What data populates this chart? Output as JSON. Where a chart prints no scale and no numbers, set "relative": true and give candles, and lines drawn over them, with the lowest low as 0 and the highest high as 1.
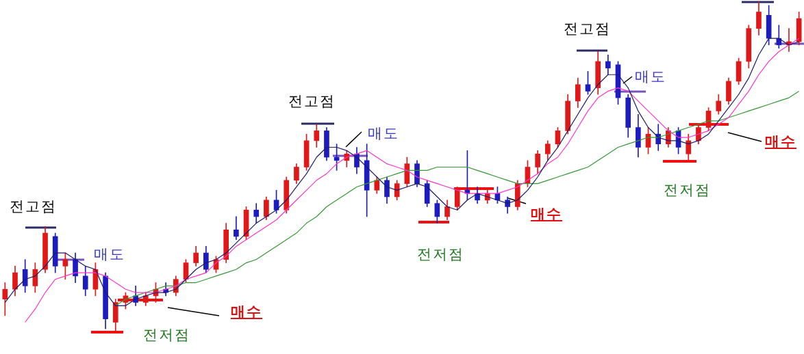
{
  "chart_data": {
    "type": "candlestick",
    "relative": true,
    "categories": [
      null,
      null,
      null,
      null,
      null,
      null,
      null,
      null,
      null,
      null,
      null,
      null,
      null,
      null,
      null,
      null,
      null,
      null,
      null,
      null,
      null,
      null,
      null,
      null,
      null,
      null,
      null,
      null,
      null,
      null,
      null,
      null,
      null,
      null,
      null,
      null,
      null,
      null,
      null,
      null,
      null,
      null,
      null,
      null,
      null,
      null,
      null,
      null,
      null,
      null,
      null,
      null,
      null,
      null,
      null,
      null,
      null,
      null,
      null,
      null,
      null,
      null,
      null,
      null,
      null,
      null,
      null,
      null,
      null,
      null,
      null,
      null,
      null,
      null,
      null,
      null,
      null,
      null,
      null,
      null
    ],
    "ohlc": [
      [
        0.1,
        0.15,
        0.05,
        0.13
      ],
      [
        0.13,
        0.2,
        0.11,
        0.18
      ],
      [
        0.19,
        0.22,
        0.12,
        0.14
      ],
      [
        0.14,
        0.21,
        0.12,
        0.19
      ],
      [
        0.19,
        0.32,
        0.18,
        0.3
      ],
      [
        0.29,
        0.3,
        0.18,
        0.2
      ],
      [
        0.2,
        0.24,
        0.16,
        0.22
      ],
      [
        0.22,
        0.24,
        0.15,
        0.17
      ],
      [
        0.17,
        0.2,
        0.11,
        0.13
      ],
      [
        0.13,
        0.21,
        0.11,
        0.19
      ],
      [
        0.17,
        0.18,
        0.01,
        0.04
      ],
      [
        0.03,
        0.1,
        0.0,
        0.09
      ],
      [
        0.09,
        0.12,
        0.07,
        0.11
      ],
      [
        0.11,
        0.14,
        0.08,
        0.09
      ],
      [
        0.09,
        0.12,
        0.08,
        0.11
      ],
      [
        0.11,
        0.15,
        0.09,
        0.13
      ],
      [
        0.13,
        0.15,
        0.11,
        0.12
      ],
      [
        0.12,
        0.17,
        0.11,
        0.16
      ],
      [
        0.16,
        0.22,
        0.15,
        0.21
      ],
      [
        0.21,
        0.26,
        0.2,
        0.24
      ],
      [
        0.24,
        0.26,
        0.18,
        0.19
      ],
      [
        0.19,
        0.23,
        0.18,
        0.22
      ],
      [
        0.22,
        0.33,
        0.21,
        0.31
      ],
      [
        0.31,
        0.35,
        0.28,
        0.29
      ],
      [
        0.29,
        0.38,
        0.28,
        0.37
      ],
      [
        0.37,
        0.39,
        0.33,
        0.35
      ],
      [
        0.35,
        0.41,
        0.34,
        0.4
      ],
      [
        0.4,
        0.43,
        0.36,
        0.37
      ],
      [
        0.37,
        0.47,
        0.36,
        0.46
      ],
      [
        0.46,
        0.51,
        0.45,
        0.5
      ],
      [
        0.5,
        0.6,
        0.49,
        0.58
      ],
      [
        0.58,
        0.63,
        0.56,
        0.61
      ],
      [
        0.61,
        0.62,
        0.52,
        0.53
      ],
      [
        0.53,
        0.57,
        0.49,
        0.52
      ],
      [
        0.52,
        0.55,
        0.5,
        0.54
      ],
      [
        0.54,
        0.56,
        0.48,
        0.5
      ],
      [
        0.52,
        0.57,
        0.35,
        0.43
      ],
      [
        0.43,
        0.47,
        0.42,
        0.46
      ],
      [
        0.46,
        0.47,
        0.39,
        0.41
      ],
      [
        0.41,
        0.46,
        0.4,
        0.45
      ],
      [
        0.45,
        0.53,
        0.44,
        0.51
      ],
      [
        0.51,
        0.52,
        0.44,
        0.45
      ],
      [
        0.45,
        0.46,
        0.38,
        0.39
      ],
      [
        0.39,
        0.4,
        0.33,
        0.35
      ],
      [
        0.35,
        0.4,
        0.34,
        0.38
      ],
      [
        0.38,
        0.44,
        0.37,
        0.43
      ],
      [
        0.43,
        0.55,
        0.4,
        0.42
      ],
      [
        0.42,
        0.44,
        0.39,
        0.4
      ],
      [
        0.4,
        0.43,
        0.39,
        0.42
      ],
      [
        0.42,
        0.44,
        0.39,
        0.4
      ],
      [
        0.4,
        0.41,
        0.36,
        0.38
      ],
      [
        0.38,
        0.46,
        0.37,
        0.45
      ],
      [
        0.45,
        0.52,
        0.44,
        0.5
      ],
      [
        0.5,
        0.55,
        0.48,
        0.54
      ],
      [
        0.54,
        0.58,
        0.52,
        0.57
      ],
      [
        0.57,
        0.62,
        0.56,
        0.61
      ],
      [
        0.61,
        0.72,
        0.6,
        0.7
      ],
      [
        0.7,
        0.77,
        0.68,
        0.75
      ],
      [
        0.75,
        0.79,
        0.72,
        0.73
      ],
      [
        0.74,
        0.85,
        0.72,
        0.82
      ],
      [
        0.82,
        0.84,
        0.78,
        0.8
      ],
      [
        0.81,
        0.82,
        0.69,
        0.71
      ],
      [
        0.71,
        0.72,
        0.59,
        0.62
      ],
      [
        0.62,
        0.66,
        0.53,
        0.56
      ],
      [
        0.56,
        0.62,
        0.54,
        0.6
      ],
      [
        0.6,
        0.63,
        0.55,
        0.57
      ],
      [
        0.57,
        0.62,
        0.56,
        0.61
      ],
      [
        0.61,
        0.62,
        0.54,
        0.56
      ],
      [
        0.54,
        0.6,
        0.52,
        0.58
      ],
      [
        0.58,
        0.63,
        0.57,
        0.62
      ],
      [
        0.62,
        0.68,
        0.61,
        0.67
      ],
      [
        0.67,
        0.72,
        0.66,
        0.7
      ],
      [
        0.7,
        0.77,
        0.69,
        0.76
      ],
      [
        0.76,
        0.83,
        0.75,
        0.82
      ],
      [
        0.82,
        0.93,
        0.8,
        0.92
      ],
      [
        0.92,
        1.0,
        0.9,
        0.97
      ],
      [
        0.96,
        0.99,
        0.87,
        0.89
      ],
      [
        0.89,
        0.93,
        0.86,
        0.87
      ],
      [
        0.87,
        0.92,
        0.85,
        0.88
      ],
      [
        0.88,
        0.97,
        0.87,
        0.95
      ]
    ],
    "colors": [
      "#e01818",
      "#e01818",
      "#1c1cc0",
      "#e01818",
      "#e01818",
      "#1c1cc0",
      "#e01818",
      "#1c1cc0",
      "#1c1cc0",
      "#e01818",
      "#1c1cc0",
      "#e01818",
      "#e01818",
      "#1c1cc0",
      "#e01818",
      "#e01818",
      "#1c1cc0",
      "#e01818",
      "#e01818",
      "#e01818",
      "#1c1cc0",
      "#e01818",
      "#e01818",
      "#1c1cc0",
      "#e01818",
      "#1c1cc0",
      "#e01818",
      "#1c1cc0",
      "#e01818",
      "#e01818",
      "#e01818",
      "#e01818",
      "#1c1cc0",
      "#1c1cc0",
      "#e01818",
      "#1c1cc0",
      "#1c1cc0",
      "#e01818",
      "#1c1cc0",
      "#e01818",
      "#e01818",
      "#1c1cc0",
      "#1c1cc0",
      "#1c1cc0",
      "#e01818",
      "#e01818",
      "#1c1cc0",
      "#1c1cc0",
      "#e01818",
      "#1c1cc0",
      "#1c1cc0",
      "#e01818",
      "#e01818",
      "#e01818",
      "#e01818",
      "#e01818",
      "#e01818",
      "#e01818",
      "#1c1cc0",
      "#e01818",
      "#1c1cc0",
      "#1c1cc0",
      "#1c1cc0",
      "#1c1cc0",
      "#e01818",
      "#1c1cc0",
      "#e01818",
      "#1c1cc0",
      "#e01818",
      "#e01818",
      "#e01818",
      "#e01818",
      "#e01818",
      "#e01818",
      "#e01818",
      "#e01818",
      "#1c1cc0",
      "#1c1cc0",
      "#e01818",
      "#e01818"
    ],
    "series": [
      {
        "type": "line",
        "color": "#1a1a6e",
        "values": [
          0.09,
          0.13,
          0.16,
          0.17,
          0.2,
          0.24,
          0.24,
          0.22,
          0.2,
          0.19,
          0.12,
          0.08,
          0.08,
          0.1,
          0.11,
          0.12,
          0.12,
          0.13,
          0.16,
          0.19,
          0.21,
          0.22,
          0.24,
          0.27,
          0.3,
          0.33,
          0.35,
          0.37,
          0.4,
          0.44,
          0.48,
          0.53,
          0.56,
          0.56,
          0.55,
          0.53,
          0.5,
          0.47,
          0.44,
          0.43,
          0.44,
          0.45,
          0.44,
          0.41,
          0.38,
          0.37,
          0.4,
          0.42,
          0.41,
          0.4,
          0.39,
          0.4,
          0.43,
          0.47,
          0.52,
          0.56,
          0.61,
          0.66,
          0.71,
          0.75,
          0.78,
          0.78,
          0.74,
          0.67,
          0.62,
          0.59,
          0.58,
          0.58,
          0.57,
          0.58,
          0.6,
          0.64,
          0.68,
          0.72,
          0.77,
          0.84,
          0.89,
          0.89,
          0.87,
          0.88
        ]
      },
      {
        "type": "line",
        "color": "#ff33cc",
        "values": [
          null,
          null,
          0.03,
          0.07,
          0.12,
          0.16,
          0.17,
          0.18,
          0.18,
          0.18,
          0.17,
          0.15,
          0.13,
          0.12,
          0.12,
          0.12,
          0.13,
          0.14,
          0.16,
          0.17,
          0.18,
          0.21,
          0.23,
          0.26,
          0.28,
          0.3,
          0.32,
          0.34,
          0.37,
          0.4,
          0.43,
          0.46,
          0.48,
          0.51,
          0.53,
          0.54,
          0.55,
          0.53,
          0.51,
          0.5,
          0.49,
          0.47,
          0.46,
          0.45,
          0.44,
          0.43,
          0.42,
          0.42,
          0.42,
          0.42,
          0.43,
          0.44,
          0.46,
          0.48,
          0.51,
          0.53,
          0.57,
          0.62,
          0.67,
          0.71,
          0.73,
          0.74,
          0.73,
          0.7,
          0.67,
          0.64,
          0.61,
          0.59,
          0.59,
          0.6,
          0.61,
          0.63,
          0.65,
          0.69,
          0.73,
          0.78,
          0.82,
          0.85,
          0.87,
          0.89
        ]
      },
      {
        "type": "line",
        "color": "#339933",
        "values": [
          null,
          null,
          null,
          null,
          null,
          null,
          null,
          null,
          null,
          null,
          null,
          0.08,
          0.1,
          0.11,
          0.12,
          0.13,
          0.14,
          0.14,
          0.15,
          0.15,
          0.16,
          0.17,
          0.18,
          0.19,
          0.21,
          0.22,
          0.24,
          0.26,
          0.28,
          0.3,
          0.33,
          0.35,
          0.38,
          0.4,
          0.42,
          0.44,
          0.45,
          0.46,
          0.47,
          0.48,
          0.49,
          0.49,
          0.49,
          0.5,
          0.5,
          0.5,
          0.5,
          0.49,
          0.48,
          0.47,
          0.46,
          0.45,
          0.45,
          0.45,
          0.46,
          0.47,
          0.48,
          0.49,
          0.5,
          0.52,
          0.54,
          0.56,
          0.57,
          0.58,
          0.59,
          0.59,
          0.6,
          0.61,
          0.62,
          0.63,
          0.64,
          0.64,
          0.65,
          0.66,
          0.67,
          0.68,
          0.69,
          0.7,
          0.71,
          0.73
        ]
      }
    ],
    "annotations": [
      "전고점",
      "매도",
      "매수",
      "전저점",
      "전고점",
      "매도",
      "매수",
      "전저점",
      "전고점",
      "매도",
      "매수",
      "전저점"
    ]
  }
}
